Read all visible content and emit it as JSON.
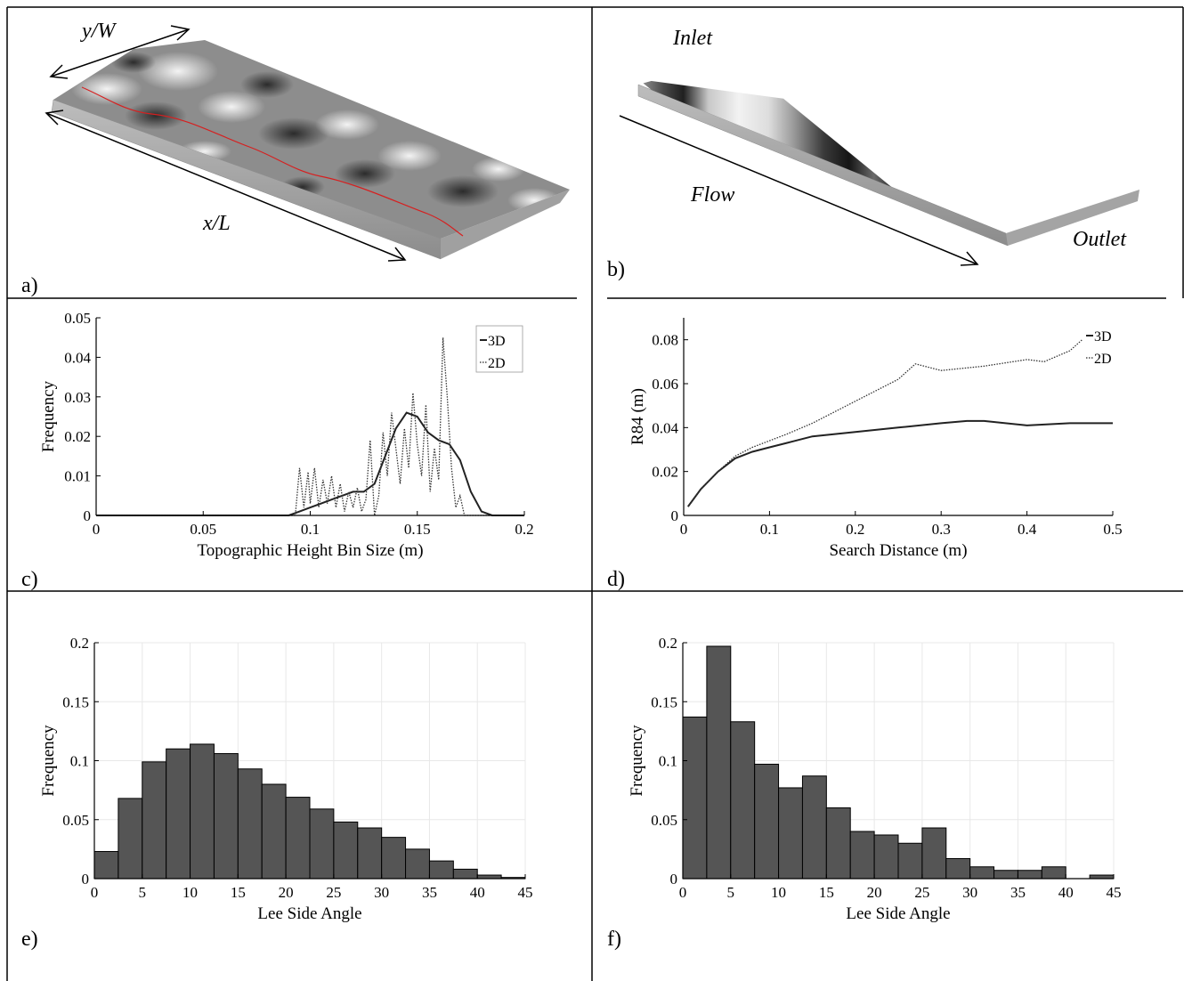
{
  "panels": {
    "a": {
      "label": "a)",
      "arrow_y": "y/W",
      "arrow_x": "x/L"
    },
    "b": {
      "label": "b)",
      "inlet": "Inlet",
      "outlet": "Outlet",
      "flow": "Flow"
    },
    "c": {
      "label": "c)"
    },
    "d": {
      "label": "d)"
    },
    "e": {
      "label": "e)"
    },
    "f": {
      "label": "f)"
    }
  },
  "colors": {
    "bar_fill": "#555555",
    "axis": "#000000",
    "grid": "#e8e8e8",
    "line": "#222222",
    "dotted_line": "#333333",
    "red_trace": "#d62020"
  },
  "chart_data": [
    {
      "panel": "c",
      "type": "line",
      "xlabel": "Topographic Height Bin Size (m)",
      "ylabel": "Frequency",
      "xlim": [
        0,
        0.2
      ],
      "ylim": [
        0,
        0.05
      ],
      "xticks": [
        "0",
        "0.05",
        "0.1",
        "0.15",
        "0.2"
      ],
      "yticks": [
        "0",
        "0.01",
        "0.02",
        "0.03",
        "0.04",
        "0.05"
      ],
      "legend": "top-right",
      "series": [
        {
          "name": "3D",
          "style": "solid",
          "x": [
            0,
            0.09,
            0.095,
            0.1,
            0.105,
            0.11,
            0.115,
            0.12,
            0.125,
            0.13,
            0.135,
            0.14,
            0.145,
            0.15,
            0.155,
            0.16,
            0.165,
            0.17,
            0.175,
            0.18,
            0.185,
            0.2
          ],
          "y": [
            0,
            0,
            0.001,
            0.002,
            0.003,
            0.004,
            0.005,
            0.006,
            0.006,
            0.008,
            0.015,
            0.022,
            0.026,
            0.025,
            0.021,
            0.019,
            0.018,
            0.014,
            0.006,
            0.001,
            0,
            0
          ]
        },
        {
          "name": "2D",
          "style": "dotted",
          "x": [
            0,
            0.093,
            0.095,
            0.097,
            0.099,
            0.1,
            0.102,
            0.104,
            0.106,
            0.108,
            0.11,
            0.112,
            0.114,
            0.116,
            0.118,
            0.12,
            0.122,
            0.124,
            0.126,
            0.128,
            0.13,
            0.132,
            0.134,
            0.136,
            0.138,
            0.14,
            0.142,
            0.144,
            0.146,
            0.148,
            0.15,
            0.152,
            0.154,
            0.156,
            0.158,
            0.16,
            0.162,
            0.164,
            0.166,
            0.168,
            0.17,
            0.172,
            0.174,
            0.2
          ],
          "y": [
            0,
            0,
            0.012,
            0.002,
            0.011,
            0.003,
            0.012,
            0.002,
            0.009,
            0.003,
            0.01,
            0.002,
            0.008,
            0.001,
            0.006,
            0.002,
            0.007,
            0.001,
            0.004,
            0.019,
            0,
            0.005,
            0.021,
            0.01,
            0.026,
            0.017,
            0.008,
            0.022,
            0.012,
            0.031,
            0.018,
            0.01,
            0.028,
            0.006,
            0.017,
            0.009,
            0.045,
            0.03,
            0.012,
            0.002,
            0.005,
            0,
            0,
            0
          ]
        }
      ]
    },
    {
      "panel": "d",
      "type": "line",
      "xlabel": "Search Distance (m)",
      "ylabel": "R84 (m)",
      "xlim": [
        0,
        0.5
      ],
      "ylim": [
        0,
        0.09
      ],
      "xticks": [
        "0",
        "0.1",
        "0.2",
        "0.3",
        "0.4",
        "0.5"
      ],
      "yticks": [
        "0",
        "0.02",
        "0.04",
        "0.06",
        "0.08"
      ],
      "legend": "top-right",
      "series": [
        {
          "name": "3D",
          "style": "solid",
          "x": [
            0.005,
            0.02,
            0.04,
            0.06,
            0.08,
            0.1,
            0.12,
            0.15,
            0.2,
            0.25,
            0.3,
            0.33,
            0.35,
            0.4,
            0.45,
            0.5
          ],
          "y": [
            0.004,
            0.012,
            0.02,
            0.026,
            0.029,
            0.031,
            0.033,
            0.036,
            0.038,
            0.04,
            0.042,
            0.043,
            0.043,
            0.041,
            0.042,
            0.042
          ]
        },
        {
          "name": "2D",
          "style": "dotted",
          "x": [
            0.005,
            0.02,
            0.04,
            0.06,
            0.08,
            0.1,
            0.12,
            0.15,
            0.2,
            0.25,
            0.27,
            0.3,
            0.35,
            0.4,
            0.42,
            0.45,
            0.47
          ],
          "y": [
            0.004,
            0.012,
            0.02,
            0.027,
            0.031,
            0.034,
            0.037,
            0.042,
            0.052,
            0.062,
            0.069,
            0.066,
            0.068,
            0.071,
            0.07,
            0.075,
            0.082
          ]
        }
      ]
    },
    {
      "panel": "e",
      "type": "bar",
      "xlabel": "Lee Side Angle",
      "ylabel": "Frequency",
      "xlim": [
        0,
        45
      ],
      "ylim": [
        0,
        0.2
      ],
      "xticks": [
        "0",
        "5",
        "10",
        "15",
        "20",
        "25",
        "30",
        "35",
        "40",
        "45"
      ],
      "yticks": [
        "0",
        "0.05",
        "0.1",
        "0.15",
        "0.2"
      ],
      "bin_width": 2.5,
      "bin_edges_start": 0,
      "values": [
        0.023,
        0.068,
        0.099,
        0.11,
        0.114,
        0.106,
        0.093,
        0.08,
        0.069,
        0.059,
        0.048,
        0.043,
        0.035,
        0.025,
        0.015,
        0.008,
        0.003,
        0.001
      ]
    },
    {
      "panel": "f",
      "type": "bar",
      "xlabel": "Lee Side Angle",
      "ylabel": "Frequency",
      "xlim": [
        0,
        45
      ],
      "ylim": [
        0,
        0.2
      ],
      "xticks": [
        "0",
        "5",
        "10",
        "15",
        "20",
        "25",
        "30",
        "35",
        "40",
        "45"
      ],
      "yticks": [
        "0",
        "0.05",
        "0.1",
        "0.15",
        "0.2"
      ],
      "bin_width": 2.5,
      "bin_edges_start": 0,
      "values": [
        0.137,
        0.197,
        0.133,
        0.097,
        0.077,
        0.087,
        0.06,
        0.04,
        0.037,
        0.03,
        0.043,
        0.017,
        0.01,
        0.007,
        0.007,
        0.01,
        0,
        0.003
      ]
    }
  ]
}
